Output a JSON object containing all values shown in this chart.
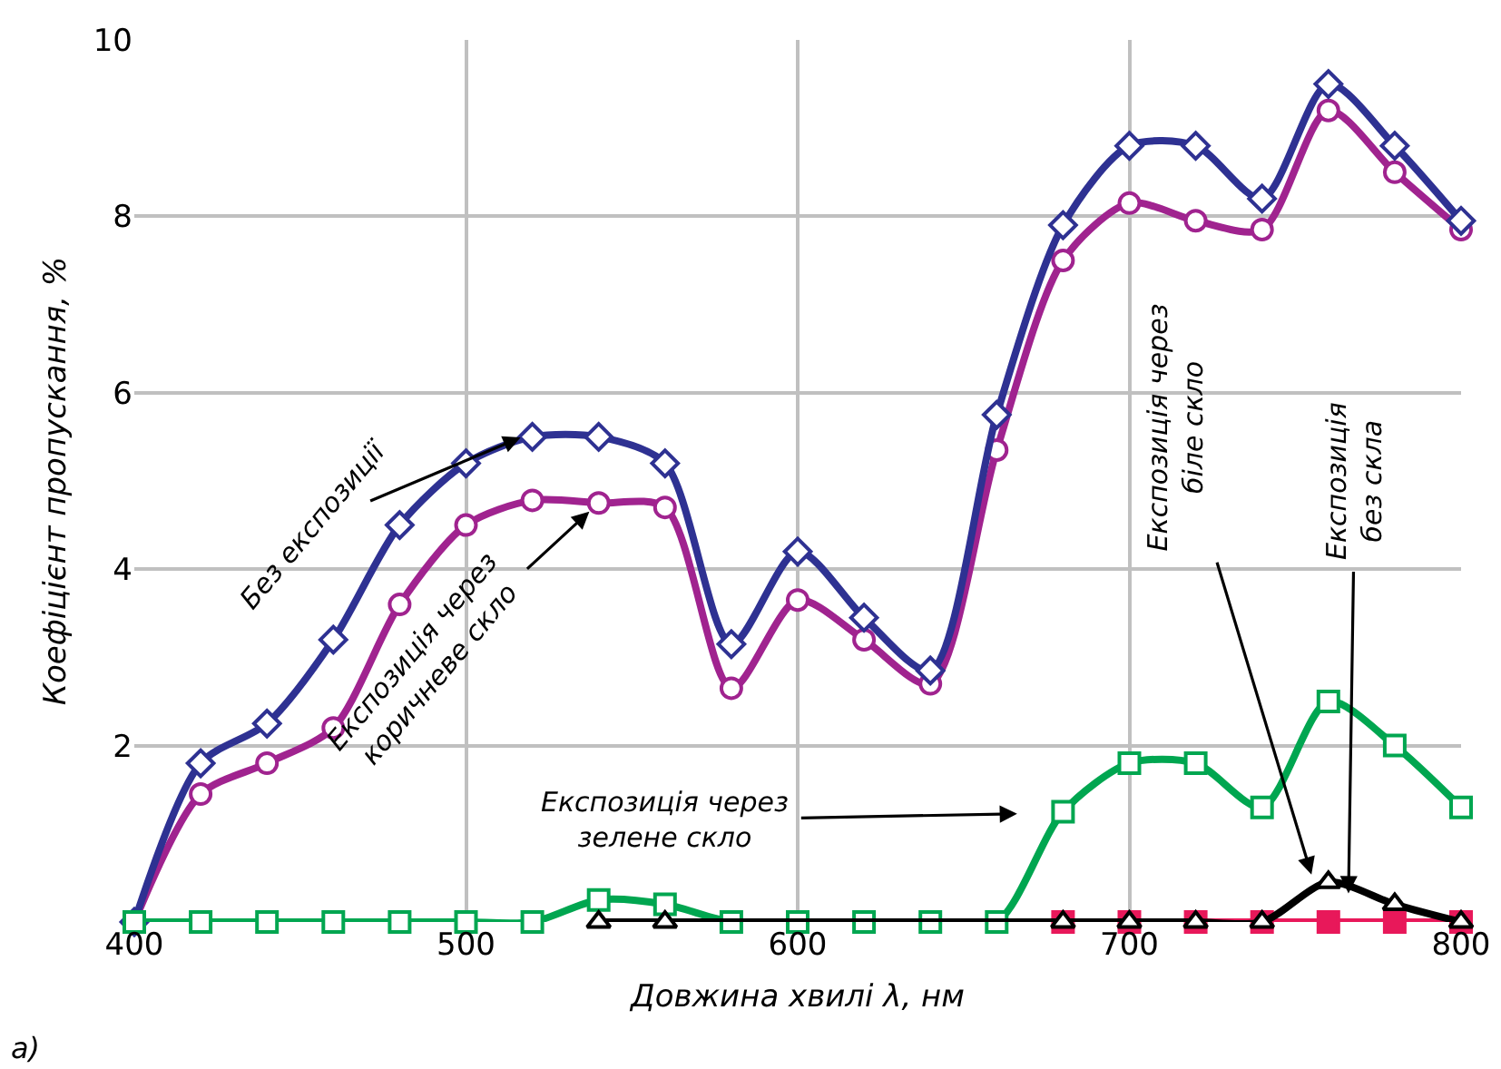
{
  "chart_data": {
    "type": "line",
    "xlabel": "Довжина хвилі λ, нм",
    "ylabel": "Коефіцієнт пропускання, %",
    "xlim": [
      400,
      800
    ],
    "xticks": [
      400,
      500,
      600,
      700,
      800
    ],
    "ylim": [
      0,
      10
    ],
    "yticks": [
      2,
      4,
      6,
      8,
      10
    ],
    "grid": true,
    "legend": false,
    "line_style": "solid",
    "series": [
      {
        "name": "Експозиція через коричневе скло",
        "color": "#a0238f",
        "marker": "circle",
        "x": [
          400,
          420,
          440,
          460,
          480,
          500,
          520,
          540,
          560,
          580,
          600,
          620,
          640,
          660,
          680,
          700,
          720,
          740,
          760,
          780,
          800
        ],
        "values": [
          0,
          1.45,
          1.8,
          2.2,
          3.6,
          4.5,
          4.78,
          4.75,
          4.7,
          2.65,
          3.65,
          3.2,
          2.7,
          5.35,
          7.5,
          8.15,
          7.95,
          7.85,
          9.2,
          8.5,
          7.85
        ]
      },
      {
        "name": "Без експозиції",
        "color": "#2e3192",
        "marker": "diamond",
        "x": [
          400,
          420,
          440,
          460,
          480,
          500,
          520,
          540,
          560,
          580,
          600,
          620,
          640,
          660,
          680,
          700,
          720,
          740,
          760,
          780,
          800
        ],
        "values": [
          0,
          1.8,
          2.25,
          3.2,
          4.5,
          5.2,
          5.5,
          5.5,
          5.2,
          3.15,
          4.2,
          3.45,
          2.85,
          5.75,
          7.9,
          8.8,
          8.8,
          8.2,
          9.5,
          8.8,
          7.95
        ]
      },
      {
        "name": "Експозиція без скла",
        "color": "#e8185a",
        "marker": "square",
        "x": [
          680,
          700,
          720,
          740,
          760,
          780,
          800
        ],
        "values": [
          0,
          0,
          0,
          0,
          0,
          0,
          0
        ]
      },
      {
        "name": "Експозиція через зелене скло",
        "color": "#00a650",
        "marker": "square",
        "x": [
          400,
          420,
          440,
          460,
          480,
          500,
          520,
          540,
          560,
          580,
          600,
          620,
          640,
          660,
          680,
          700,
          720,
          740,
          760,
          780,
          800
        ],
        "values": [
          0,
          0,
          0,
          0,
          0,
          0,
          0,
          0.25,
          0.2,
          0,
          0,
          0,
          0,
          0,
          1.25,
          1.8,
          1.8,
          1.3,
          2.5,
          2.0,
          1.3
        ]
      },
      {
        "name": "Експозиція через біле скло",
        "color": "#000000",
        "marker": "triangle",
        "x": [
          540,
          560,
          680,
          700,
          720,
          740,
          760,
          780,
          800
        ],
        "values": [
          0,
          0,
          0,
          0,
          0,
          0,
          0.45,
          0.2,
          0
        ]
      }
    ],
    "annotations": [
      "а)"
    ]
  }
}
